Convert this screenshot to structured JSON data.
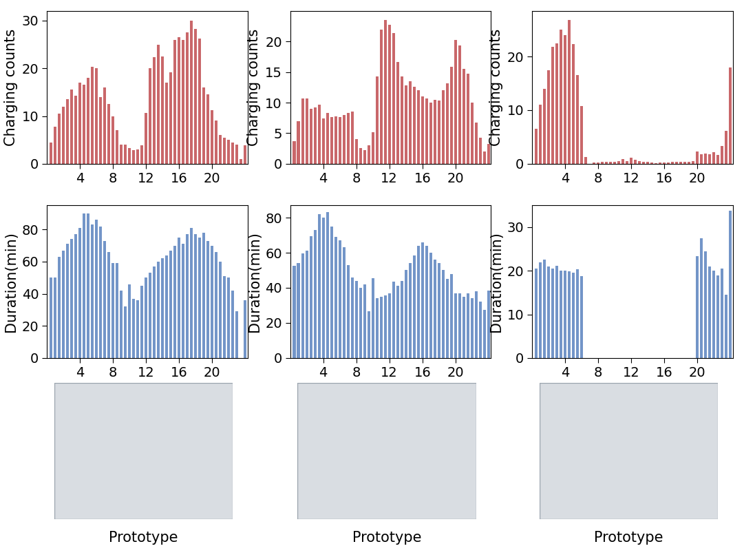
{
  "chart_data": [
    {
      "type": "bar",
      "ylabel": "Charging counts",
      "color": "#c9676a",
      "x": [
        0.5,
        1,
        1.5,
        2,
        2.5,
        3,
        3.5,
        4,
        4.5,
        5,
        5.5,
        6,
        6.5,
        7,
        7.5,
        8,
        8.5,
        9,
        9.5,
        10,
        10.5,
        11,
        11.5,
        12,
        12.5,
        13,
        13.5,
        14,
        14.5,
        15,
        15.5,
        16,
        16.5,
        17,
        17.5,
        18,
        18.5,
        19,
        19.5,
        20,
        20.5,
        21,
        21.5,
        22,
        22.5,
        23,
        23.5,
        24
      ],
      "values": [
        4.5,
        7.8,
        10.5,
        12,
        13.5,
        15.5,
        14.2,
        17,
        16.5,
        18,
        20.3,
        20,
        14,
        16,
        12.5,
        10,
        7,
        4,
        4,
        3.3,
        2.8,
        3,
        3.8,
        10.7,
        20,
        22.3,
        25,
        22.5,
        17,
        19.2,
        26,
        26.5,
        26,
        27.5,
        30,
        28.3,
        26.2,
        16,
        14.5,
        11.2,
        9,
        6,
        5.5,
        5,
        4.5,
        4,
        1,
        3.8
      ],
      "xlim": [
        0,
        24.3
      ],
      "ylim": [
        0,
        32
      ],
      "xticks": [
        4,
        8,
        12,
        16,
        20
      ],
      "yticks": [
        0,
        10,
        20,
        30
      ]
    },
    {
      "type": "bar",
      "ylabel": "Charging counts",
      "color": "#c9676a",
      "x": [
        0.5,
        1,
        1.5,
        2,
        2.5,
        3,
        3.5,
        4,
        4.5,
        5,
        5.5,
        6,
        6.5,
        7,
        7.5,
        8,
        8.5,
        9,
        9.5,
        10,
        10.5,
        11,
        11.5,
        12,
        12.5,
        13,
        13.5,
        14,
        14.5,
        15,
        15.5,
        16,
        16.5,
        17,
        17.5,
        18,
        18.5,
        19,
        19.5,
        20,
        20.5,
        21,
        21.5,
        22,
        22.5,
        23,
        23.5,
        24
      ],
      "values": [
        3.7,
        7,
        10.7,
        10.7,
        9,
        9.2,
        9.7,
        7.4,
        8.3,
        7.6,
        7.8,
        7.6,
        8,
        8.3,
        8.6,
        4,
        2.6,
        2.2,
        3,
        5.2,
        14.3,
        22,
        23.6,
        22.8,
        21.4,
        16.7,
        14.3,
        12.8,
        13.5,
        12.6,
        12,
        11,
        10.7,
        10,
        10.5,
        10.4,
        12,
        13.2,
        15.9,
        20.3,
        19.4,
        15.5,
        14.8,
        10,
        6.7,
        4.3,
        2,
        3.3
      ],
      "xlim": [
        0,
        24.3
      ],
      "ylim": [
        0,
        25
      ],
      "xticks": [
        4,
        8,
        12,
        16,
        20
      ],
      "yticks": [
        0,
        5,
        10,
        15,
        20
      ]
    },
    {
      "type": "bar",
      "ylabel": "Charging counts",
      "color": "#c9676a",
      "x": [
        0.5,
        1,
        1.5,
        2,
        2.5,
        3,
        3.5,
        4,
        4.5,
        5,
        5.5,
        6,
        6.5,
        7,
        7.5,
        8,
        8.5,
        9,
        9.5,
        10,
        10.5,
        11,
        11.5,
        12,
        12.5,
        13,
        13.5,
        14,
        14.5,
        15,
        15.5,
        16,
        16.5,
        17,
        17.5,
        18,
        18.5,
        19,
        19.5,
        20,
        20.5,
        21,
        21.5,
        22,
        22.5,
        23,
        23.5,
        24
      ],
      "values": [
        6.5,
        11,
        14,
        17.5,
        21.8,
        22.5,
        25,
        24,
        26.8,
        22.3,
        16.5,
        10.8,
        1.3,
        0,
        0.2,
        0.2,
        0.3,
        0.3,
        0.3,
        0.4,
        0.5,
        0.9,
        0.5,
        1.1,
        0.8,
        0.5,
        0.3,
        0.3,
        0.2,
        0.1,
        0.2,
        0.2,
        0.2,
        0.3,
        0.3,
        0.4,
        0.3,
        0.3,
        0.5,
        2.3,
        1.8,
        1.9,
        1.8,
        2.1,
        1.7,
        3.3,
        6.1,
        18
      ],
      "xlim": [
        0,
        24.3
      ],
      "ylim": [
        0,
        28.5
      ],
      "xticks": [
        4,
        8,
        12,
        16,
        20
      ],
      "yticks": [
        0,
        10,
        20
      ]
    },
    {
      "type": "bar",
      "ylabel": "Duration(min)",
      "color": "#7395c8",
      "x": [
        0.5,
        1,
        1.5,
        2,
        2.5,
        3,
        3.5,
        4,
        4.5,
        5,
        5.5,
        6,
        6.5,
        7,
        7.5,
        8,
        8.5,
        9,
        9.5,
        10,
        10.5,
        11,
        11.5,
        12,
        12.5,
        13,
        13.5,
        14,
        14.5,
        15,
        15.5,
        16,
        16.5,
        17,
        17.5,
        18,
        18.5,
        19,
        19.5,
        20,
        20.5,
        21,
        21.5,
        22,
        22.5,
        23,
        23.5,
        24
      ],
      "values": [
        50,
        50,
        63,
        67,
        71,
        74,
        77,
        81,
        90,
        90,
        83,
        86,
        82,
        73,
        66,
        59,
        59,
        42,
        32,
        46,
        37,
        36,
        45,
        50,
        53,
        57,
        60,
        62,
        64,
        67,
        70,
        75,
        71,
        77,
        81,
        77,
        75,
        78,
        73,
        70,
        66,
        60,
        51,
        50,
        42,
        29,
        null,
        36
      ],
      "xlim": [
        0,
        24.3
      ],
      "ylim": [
        0,
        95
      ],
      "xticks": [
        4,
        8,
        12,
        16,
        20
      ],
      "yticks": [
        0,
        20,
        40,
        60,
        80
      ]
    },
    {
      "type": "bar",
      "ylabel": "Duration(min)",
      "color": "#7395c8",
      "x": [
        0.5,
        1,
        1.5,
        2,
        2.5,
        3,
        3.5,
        4,
        4.5,
        5,
        5.5,
        6,
        6.5,
        7,
        7.5,
        8,
        8.5,
        9,
        9.5,
        10,
        10.5,
        11,
        11.5,
        12,
        12.5,
        13,
        13.5,
        14,
        14.5,
        15,
        15.5,
        16,
        16.5,
        17,
        17.5,
        18,
        18.5,
        19,
        19.5,
        20,
        20.5,
        21,
        21.5,
        22,
        22.5,
        23,
        23.5,
        24
      ],
      "values": [
        52.5,
        54,
        59.5,
        61,
        69.5,
        73,
        82,
        80,
        83,
        75,
        69,
        67,
        63,
        53,
        46,
        44,
        40,
        42,
        26.5,
        45.5,
        34,
        35,
        35.5,
        37,
        43.5,
        41,
        44,
        50,
        54,
        58.5,
        64,
        66,
        64,
        60,
        56,
        54,
        50,
        45,
        48,
        37,
        37,
        35,
        37,
        34,
        38,
        32,
        27.5,
        38.5
      ],
      "xlim": [
        0,
        24.3
      ],
      "ylim": [
        0,
        87
      ],
      "xticks": [
        4,
        8,
        12,
        16,
        20
      ],
      "yticks": [
        0,
        20,
        40,
        60,
        80
      ]
    },
    {
      "type": "bar",
      "ylabel": "Duration(min)",
      "color": "#7395c8",
      "x": [
        0.5,
        1,
        1.5,
        2,
        2.5,
        3,
        3.5,
        4,
        4.5,
        5,
        5.5,
        6,
        6.5,
        7,
        7.5,
        8,
        8.5,
        9,
        9.5,
        10,
        10.5,
        11,
        11.5,
        12,
        12.5,
        13,
        13.5,
        14,
        14.5,
        15,
        15.5,
        16,
        16.5,
        17,
        17.5,
        18,
        18.5,
        19,
        19.5,
        20,
        20.5,
        21,
        21.5,
        22,
        22.5,
        23,
        23.5,
        24
      ],
      "values": [
        20.5,
        22,
        22.5,
        21,
        20.5,
        21.2,
        20,
        20,
        19.8,
        19.5,
        20.3,
        18.8,
        null,
        null,
        null,
        null,
        null,
        null,
        null,
        null,
        null,
        null,
        null,
        null,
        null,
        null,
        null,
        null,
        null,
        null,
        null,
        null,
        null,
        null,
        null,
        null,
        null,
        null,
        null,
        23.3,
        27.5,
        24.5,
        21,
        20,
        19,
        20.5,
        14.5,
        33.7
      ],
      "xlim": [
        0,
        24.3
      ],
      "ylim": [
        0,
        35
      ],
      "xticks": [
        4,
        8,
        12,
        16,
        20
      ],
      "yticks": [
        0,
        10,
        20,
        30
      ]
    }
  ],
  "captions": [
    "Prototype",
    "Prototype",
    "Prototype"
  ]
}
